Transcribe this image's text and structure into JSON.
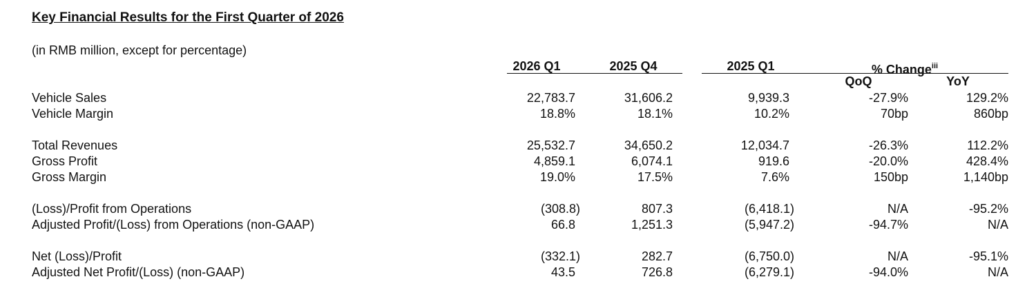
{
  "header": {
    "title": "Key Financial Results for the First Quarter of 2026",
    "subtitle": "(in RMB million, except for percentage)"
  },
  "table": {
    "columns": [
      "2026 Q1",
      "2025 Q4",
      "2025 Q1"
    ],
    "change_header": "% Change",
    "change_note": "iii",
    "change_columns": [
      "QoQ",
      "YoY"
    ],
    "groups": [
      [
        {
          "label": "Vehicle Sales",
          "values": [
            "22,783.7",
            "31,606.2",
            "9,939.3",
            "-27.9%",
            "129.2%"
          ]
        },
        {
          "label": "Vehicle Margin",
          "values": [
            "18.8%",
            "18.1%",
            "10.2%",
            "70bp",
            "860bp"
          ]
        }
      ],
      [
        {
          "label": "Total Revenues",
          "values": [
            "25,532.7",
            "34,650.2",
            "12,034.7",
            "-26.3%",
            "112.2%"
          ]
        },
        {
          "label": "Gross Profit",
          "values": [
            "4,859.1",
            "6,074.1",
            "919.6",
            "-20.0%",
            "428.4%"
          ]
        },
        {
          "label": "Gross Margin",
          "values": [
            "19.0%",
            "17.5%",
            "7.6%",
            "150bp",
            "1,140bp"
          ]
        }
      ],
      [
        {
          "label": "(Loss)/Profit from Operations",
          "values": [
            "(308.8)",
            "807.3",
            "(6,418.1)",
            "N/A",
            "-95.2%"
          ]
        },
        {
          "label": "Adjusted Profit/(Loss) from Operations (non-GAAP)",
          "values": [
            "66.8",
            "1,251.3",
            "(5,947.2)",
            "-94.7%",
            "N/A"
          ]
        }
      ],
      [
        {
          "label": "Net (Loss)/Profit",
          "values": [
            "(332.1)",
            "282.7",
            "(6,750.0)",
            "N/A",
            "-95.1%"
          ]
        },
        {
          "label": "Adjusted Net Profit/(Loss) (non-GAAP)",
          "values": [
            "43.5",
            "726.8",
            "(6,279.1)",
            "-94.0%",
            "N/A"
          ]
        }
      ]
    ]
  }
}
